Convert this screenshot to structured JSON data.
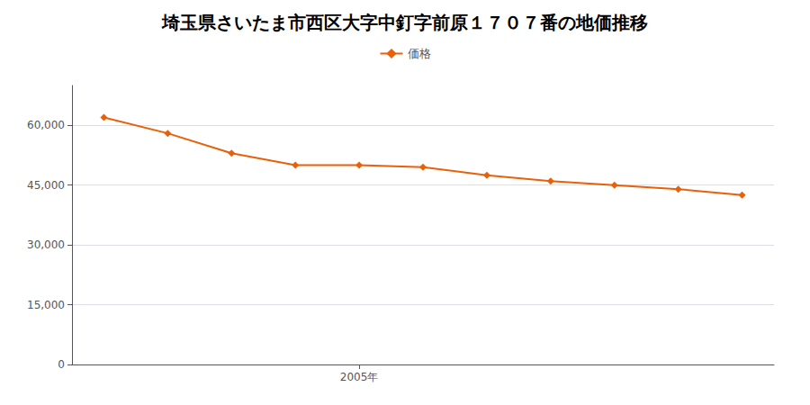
{
  "chart_data": {
    "type": "line",
    "title": "埼玉県さいたま市西区大字中釘字前原１７０７番の地価推移",
    "x": [
      2001,
      2002,
      2003,
      2004,
      2005,
      2006,
      2007,
      2008,
      2009,
      2010,
      2011
    ],
    "series": [
      {
        "name": "価格",
        "color": "#E8610A",
        "marker": "diamond",
        "values": [
          62000,
          58000,
          53000,
          50000,
          50000,
          49500,
          47500,
          46000,
          45000,
          44000,
          42500
        ]
      }
    ],
    "xlim": [
      2000.5,
      2011.5
    ],
    "xticks": [
      {
        "value": 2005,
        "label": "2005年"
      }
    ],
    "ylim": [
      0,
      70000
    ],
    "yticks": [
      0,
      {
        "value": 15000,
        "label": "15,000"
      },
      {
        "value": 30000,
        "label": "30,000"
      },
      {
        "value": 45000,
        "label": "45,000"
      },
      {
        "value": 60000,
        "label": "60,000"
      }
    ],
    "grid": true,
    "legend": "top"
  }
}
